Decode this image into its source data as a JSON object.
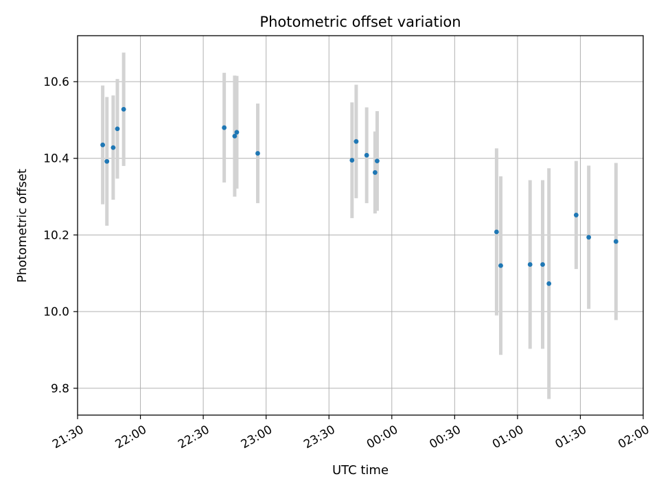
{
  "chart_data": {
    "type": "scatter",
    "title": "Photometric offset variation",
    "xlabel": "UTC time",
    "ylabel": "Photometric offset",
    "x_unit": "UTC time (HH:MM)",
    "xlim": [
      "21:30",
      "02:00"
    ],
    "ylim": [
      9.73,
      10.72
    ],
    "x_ticks": [
      "21:30",
      "22:00",
      "22:30",
      "23:00",
      "23:30",
      "00:00",
      "00:30",
      "01:00",
      "01:30",
      "02:00"
    ],
    "y_ticks": [
      9.8,
      10.0,
      10.2,
      10.4,
      10.6
    ],
    "y_tick_labels": [
      "9.8",
      "10.0",
      "10.2",
      "10.4",
      "10.6"
    ],
    "grid": true,
    "colors": {
      "point": "#1f77b4",
      "errorbar": "#d3d3d3",
      "grid": "#b0b0b0"
    },
    "points": [
      {
        "x": "21:42",
        "y": 10.435,
        "err": 0.155
      },
      {
        "x": "21:44",
        "y": 10.392,
        "err": 0.168
      },
      {
        "x": "21:47",
        "y": 10.428,
        "err": 0.136
      },
      {
        "x": "21:49",
        "y": 10.477,
        "err": 0.13
      },
      {
        "x": "21:52",
        "y": 10.528,
        "err": 0.148
      },
      {
        "x": "22:40",
        "y": 10.48,
        "err": 0.143
      },
      {
        "x": "22:45",
        "y": 10.458,
        "err": 0.158
      },
      {
        "x": "22:46",
        "y": 10.468,
        "err": 0.147
      },
      {
        "x": "22:56",
        "y": 10.413,
        "err": 0.13
      },
      {
        "x": "23:41",
        "y": 10.395,
        "err": 0.151
      },
      {
        "x": "23:43",
        "y": 10.444,
        "err": 0.148
      },
      {
        "x": "23:48",
        "y": 10.408,
        "err": 0.125
      },
      {
        "x": "23:52",
        "y": 10.363,
        "err": 0.107
      },
      {
        "x": "23:53",
        "y": 10.393,
        "err": 0.13
      },
      {
        "x": "00:50",
        "y": 10.208,
        "err": 0.218
      },
      {
        "x": "00:52",
        "y": 10.12,
        "err": 0.233
      },
      {
        "x": "01:06",
        "y": 10.123,
        "err": 0.22
      },
      {
        "x": "01:12",
        "y": 10.123,
        "err": 0.22
      },
      {
        "x": "01:15",
        "y": 10.073,
        "err": 0.301
      },
      {
        "x": "01:28",
        "y": 10.252,
        "err": 0.141
      },
      {
        "x": "01:34",
        "y": 10.194,
        "err": 0.187
      },
      {
        "x": "01:47",
        "y": 10.183,
        "err": 0.205
      }
    ]
  }
}
